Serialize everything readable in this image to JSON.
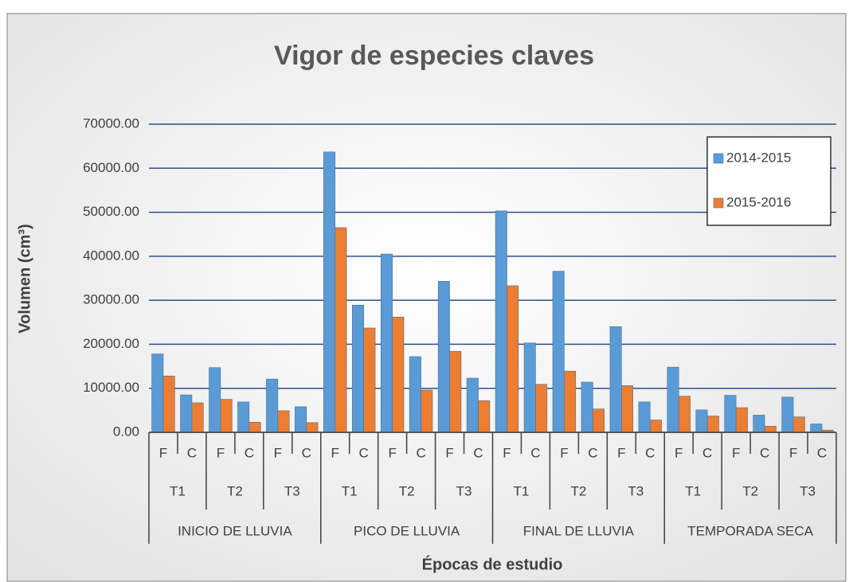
{
  "chart_data": {
    "type": "bar",
    "title": "Vigor de especies claves",
    "y_label": "Volumen (cm³)",
    "x_label": "Épocas de estudio",
    "categories": [
      "F",
      "C",
      "F",
      "C",
      "F",
      "C",
      "F",
      "C",
      "F",
      "C",
      "F",
      "C",
      "F",
      "C",
      "F",
      "C",
      "F",
      "C",
      "F",
      "C",
      "F",
      "C",
      "F",
      "C"
    ],
    "category_levels": [
      [
        "T1",
        "T2",
        "T3",
        "T1",
        "T2",
        "T3",
        "T1",
        "T2",
        "T3",
        "T1",
        "T2",
        "T3"
      ],
      [
        "INICIO DE LLUVIA",
        "PICO DE LLUVIA",
        "FINAL DE LLUVIA",
        "TEMPORADA SECA"
      ]
    ],
    "series": [
      {
        "name": "2014-2015",
        "color": "#5b9bd5",
        "values": [
          17800,
          8500,
          14700,
          6900,
          12100,
          5800,
          63700,
          28900,
          40500,
          17200,
          34300,
          12300,
          50300,
          20300,
          36600,
          11400,
          24000,
          6900,
          14800,
          5100,
          8400,
          3900,
          8000,
          1900
        ]
      },
      {
        "name": "2015-2016",
        "color": "#ed7d31",
        "values": [
          12800,
          6700,
          7500,
          2300,
          4900,
          2200,
          46500,
          23700,
          26200,
          9600,
          18400,
          7200,
          33300,
          10900,
          13900,
          5300,
          10600,
          2800,
          8200,
          3700,
          5600,
          1400,
          3500,
          500
        ]
      }
    ],
    "ylim": [
      0,
      70000
    ],
    "yticks": [
      {
        "value": 0,
        "label": "0.00"
      },
      {
        "value": 10000,
        "label": "10000.00"
      },
      {
        "value": 20000,
        "label": "20000.00"
      },
      {
        "value": 30000,
        "label": "30000.00"
      },
      {
        "value": 40000,
        "label": "40000.00"
      },
      {
        "value": 50000,
        "label": "50000.00"
      },
      {
        "value": 60000,
        "label": "60000.00"
      },
      {
        "value": 70000,
        "label": "70000.00"
      }
    ],
    "grid": true,
    "legend": "top-right"
  }
}
